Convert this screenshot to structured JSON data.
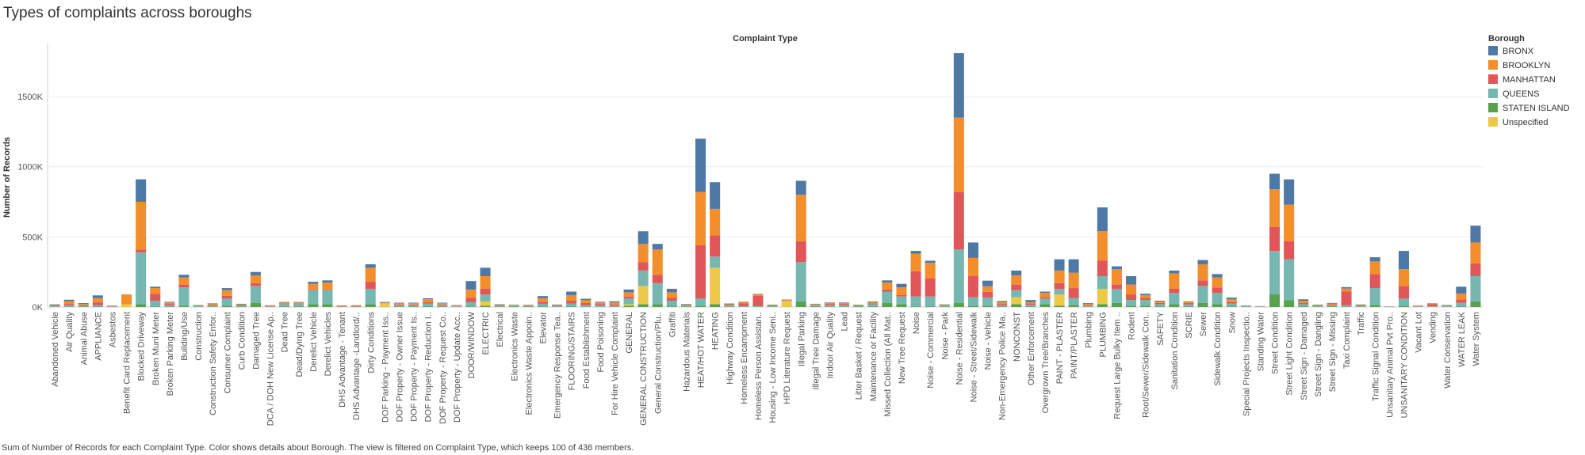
{
  "page": {
    "title": "Types of complaints across boroughs",
    "footer": "Sum of Number of Records for each Complaint Type.  Color shows details about Borough. The view is filtered on Complaint Type, which keeps 100 of 436 members."
  },
  "colors": {
    "BRONX": "#4e79a7",
    "BROOKLYN": "#f28e2b",
    "MANHATTAN": "#e15759",
    "QUEENS": "#76b7b2",
    "STATEN ISLAND": "#59a14f",
    "Unspecified": "#edc948"
  },
  "chart_data": {
    "type": "bar",
    "stacked": true,
    "title": "Complaint Type",
    "xlabel": "",
    "ylabel": "Number of Records",
    "ylim": [
      0,
      1850000
    ],
    "yticks": [
      0,
      500000,
      1000000,
      1500000
    ],
    "ytick_labels": [
      "0K",
      "500K",
      "1000K",
      "1500K"
    ],
    "grid": true,
    "legend": {
      "title": "Borough",
      "position": "top-right",
      "entries": [
        "BRONX",
        "BROOKLYN",
        "MANHATTAN",
        "QUEENS",
        "STATEN ISLAND",
        "Unspecified"
      ]
    },
    "categories": [
      "Abandoned Vehicle",
      "Air Quality",
      "Animal Abuse",
      "APPLIANCE",
      "Asbestos",
      "Benefit Card Replacement",
      "Blocked Driveway",
      "Broken Muni Meter",
      "Broken Parking Meter",
      "Building/Use",
      "Construction",
      "Construction Safety Enfor..",
      "Consumer Complaint",
      "Curb Condition",
      "Damaged Tree",
      "DCA / DOH New License Ap..",
      "Dead Tree",
      "Dead/Dying Tree",
      "Derelict Vehicle",
      "Derelict Vehicles",
      "DHS Advantage - Tenant",
      "DHS Advantage -Landlord/..",
      "Dirty Conditions",
      "DOF Parking - Payment Iss..",
      "DOF Property - Owner Issue",
      "DOF Property - Payment Is..",
      "DOF Property - Reduction I..",
      "DOF Property - Request Co..",
      "DOF Property - Update Acc..",
      "DOOR/WINDOW",
      "ELECTRIC",
      "Electrical",
      "Electronics Waste",
      "Electronics Waste Appoin..",
      "Elevator",
      "Emergency Response Tea..",
      "FLOORING/STAIRS",
      "Food Establishment",
      "Food Poisoning",
      "For Hire Vehicle Complaint",
      "GENERAL",
      "GENERAL CONSTRUCTION",
      "General Construction/Plu..",
      "Graffiti",
      "Hazardous Materials",
      "HEAT/HOT WATER",
      "HEATING",
      "Highway Condition",
      "Homeless Encampment",
      "Homeless Person Assistan..",
      "Housing - Low Income Seni..",
      "HPD Literature Request",
      "Illegal Parking",
      "Illegal Tree Damage",
      "Indoor Air Quality",
      "Lead",
      "Litter Basket / Request",
      "Maintenance or Facility",
      "Missed Collection (All Mat..",
      "New Tree Request",
      "Noise",
      "Noise - Commercial",
      "Noise - Park",
      "Noise - Residential",
      "Noise - Street/Sidewalk",
      "Noise - Vehicle",
      "Non-Emergency Police Ma..",
      "NONCONST",
      "Other Enforcement",
      "Overgrown Tree/Branches",
      "PAINT - PLASTER",
      "PAINT/PLASTER",
      "Plumbing",
      "PLUMBING",
      "Request Large Bulky Item ..",
      "Rodent",
      "Root/Sewer/Sidewalk Con..",
      "SAFETY",
      "Sanitation Condition",
      "SCRIE",
      "Sewer",
      "Sidewalk Condition",
      "Snow",
      "Special Projects Inspectio..",
      "Standing Water",
      "Street Condition",
      "Street Light Condition",
      "Street Sign - Damaged",
      "Street Sign - Dangling",
      "Street Sign - Missing",
      "Taxi Complaint",
      "Traffic",
      "Traffic Signal Condition",
      "Unsanitary Animal Pvt Pro..",
      "UNSANITARY CONDITION",
      "Vacant Lot",
      "Vending",
      "Water Conservation",
      "WATER LEAK",
      "Water System"
    ],
    "series": [
      {
        "name": "BRONX",
        "values": [
          6000,
          10000,
          7000,
          20000,
          2000,
          0,
          160000,
          10000,
          5000,
          20000,
          2000,
          5000,
          15000,
          4000,
          25000,
          1000,
          4000,
          4000,
          15000,
          15000,
          2000,
          1000,
          25000,
          3000,
          3000,
          3000,
          7000,
          3000,
          3000,
          60000,
          60000,
          3000,
          2000,
          2000,
          15000,
          2000,
          25000,
          10000,
          5000,
          8000,
          20000,
          90000,
          40000,
          25000,
          4000,
          380000,
          190000,
          5000,
          2000,
          3000,
          3000,
          2000,
          100000,
          3000,
          3000,
          3000,
          2000,
          5000,
          15000,
          25000,
          20000,
          15000,
          3000,
          460000,
          110000,
          40000,
          7000,
          35000,
          15000,
          10000,
          80000,
          95000,
          5000,
          170000,
          20000,
          60000,
          10000,
          5000,
          20000,
          3000,
          30000,
          25000,
          12000,
          2000,
          1000,
          110000,
          180000,
          10000,
          3000,
          5000,
          10000,
          4000,
          30000,
          1000,
          130000,
          2000,
          3000,
          3000,
          50000,
          120000
        ]
      },
      {
        "name": "BROOKLYN",
        "values": [
          5000,
          20000,
          8000,
          30000,
          2000,
          70000,
          340000,
          40000,
          10000,
          50000,
          4000,
          10000,
          40000,
          5000,
          55000,
          3000,
          10000,
          10000,
          40000,
          50000,
          5000,
          5000,
          100000,
          2000,
          10000,
          10000,
          20000,
          10000,
          4000,
          60000,
          90000,
          5000,
          5000,
          4000,
          25000,
          5000,
          40000,
          20000,
          10000,
          15000,
          30000,
          130000,
          180000,
          40000,
          5000,
          380000,
          190000,
          6000,
          10000,
          10000,
          5000,
          5000,
          330000,
          5000,
          10000,
          10000,
          4000,
          10000,
          50000,
          55000,
          125000,
          110000,
          4000,
          530000,
          130000,
          40000,
          15000,
          65000,
          10000,
          30000,
          90000,
          110000,
          8000,
          210000,
          110000,
          70000,
          20000,
          10000,
          110000,
          10000,
          115000,
          70000,
          20000,
          2000,
          1000,
          270000,
          260000,
          15000,
          5000,
          8000,
          20000,
          5000,
          90000,
          1000,
          120000,
          3000,
          4000,
          4000,
          40000,
          150000
        ]
      },
      {
        "name": "MANHATTAN",
        "values": [
          2000,
          10000,
          7000,
          20000,
          3000,
          0,
          20000,
          50000,
          10000,
          20000,
          3000,
          5000,
          20000,
          3000,
          20000,
          5000,
          2000,
          2000,
          5000,
          5000,
          3000,
          5000,
          50000,
          3000,
          5000,
          5000,
          10000,
          5000,
          3000,
          30000,
          40000,
          5000,
          2000,
          2000,
          15000,
          5000,
          20000,
          15000,
          10000,
          8000,
          15000,
          60000,
          60000,
          20000,
          5000,
          380000,
          150000,
          4000,
          20000,
          75000,
          3000,
          3000,
          150000,
          2000,
          8000,
          8000,
          3000,
          5000,
          15000,
          10000,
          180000,
          130000,
          5000,
          410000,
          150000,
          40000,
          10000,
          40000,
          10000,
          10000,
          40000,
          70000,
          5000,
          110000,
          30000,
          40000,
          15000,
          10000,
          30000,
          10000,
          40000,
          40000,
          10000,
          2000,
          1000,
          170000,
          130000,
          10000,
          3000,
          5000,
          100000,
          3000,
          100000,
          1000,
          90000,
          3000,
          15000,
          2000,
          25000,
          90000
        ]
      },
      {
        "name": "QUEENS",
        "values": [
          4000,
          10000,
          4000,
          10000,
          3000,
          0,
          370000,
          40000,
          10000,
          130000,
          5000,
          5000,
          50000,
          8000,
          120000,
          3000,
          15000,
          15000,
          100000,
          100000,
          2000,
          2000,
          110000,
          2000,
          10000,
          10000,
          20000,
          10000,
          3000,
          30000,
          50000,
          5000,
          5000,
          5000,
          20000,
          5000,
          20000,
          10000,
          10000,
          8000,
          40000,
          110000,
          150000,
          40000,
          5000,
          50000,
          80000,
          8000,
          5000,
          5000,
          5000,
          3000,
          280000,
          10000,
          10000,
          10000,
          5000,
          15000,
          80000,
          55000,
          70000,
          70000,
          5000,
          380000,
          60000,
          60000,
          8000,
          50000,
          10000,
          40000,
          40000,
          50000,
          8000,
          90000,
          100000,
          40000,
          40000,
          15000,
          80000,
          15000,
          120000,
          80000,
          20000,
          5000,
          3000,
          310000,
          290000,
          15000,
          5000,
          8000,
          10000,
          5000,
          120000,
          1000,
          50000,
          3000,
          4000,
          5000,
          25000,
          180000
        ]
      },
      {
        "name": "STATEN ISLAND",
        "values": [
          2000,
          2000,
          2000,
          3000,
          1000,
          0,
          20000,
          5000,
          2000,
          10000,
          1000,
          1000,
          10000,
          3000,
          30000,
          1000,
          5000,
          5000,
          20000,
          20000,
          0,
          1000,
          20000,
          1000,
          3000,
          3000,
          5000,
          3000,
          1000,
          5000,
          10000,
          2000,
          3000,
          3000,
          3000,
          1000,
          5000,
          4000,
          2000,
          2000,
          10000,
          20000,
          20000,
          5000,
          2000,
          10000,
          20000,
          2000,
          1000,
          1000,
          1000,
          1000,
          40000,
          3000,
          2000,
          2000,
          3000,
          5000,
          30000,
          20000,
          5000,
          5000,
          2000,
          30000,
          10000,
          8000,
          3000,
          20000,
          5000,
          20000,
          10000,
          15000,
          2000,
          20000,
          30000,
          10000,
          10000,
          5000,
          20000,
          3000,
          30000,
          20000,
          5000,
          1000,
          1000,
          90000,
          50000,
          5000,
          1000,
          3000,
          2000,
          1000,
          15000,
          1000,
          10000,
          1000,
          1000,
          1000,
          5000,
          40000
        ]
      },
      {
        "name": "Unspecified",
        "values": [
          0,
          0,
          0,
          0,
          0,
          20000,
          0,
          0,
          0,
          0,
          0,
          0,
          0,
          0,
          0,
          0,
          0,
          0,
          0,
          0,
          0,
          0,
          0,
          25000,
          0,
          0,
          0,
          0,
          0,
          0,
          30000,
          0,
          0,
          0,
          0,
          0,
          0,
          0,
          0,
          0,
          10000,
          130000,
          0,
          0,
          0,
          0,
          260000,
          0,
          0,
          0,
          0,
          40000,
          0,
          0,
          0,
          0,
          0,
          0,
          0,
          0,
          0,
          0,
          0,
          0,
          0,
          0,
          0,
          50000,
          0,
          0,
          80000,
          0,
          0,
          110000,
          0,
          0,
          0,
          0,
          0,
          0,
          0,
          0,
          0,
          0,
          0,
          0,
          0,
          0,
          0,
          0,
          0,
          0,
          0,
          0,
          0,
          0,
          0,
          0,
          0,
          0
        ]
      }
    ]
  }
}
